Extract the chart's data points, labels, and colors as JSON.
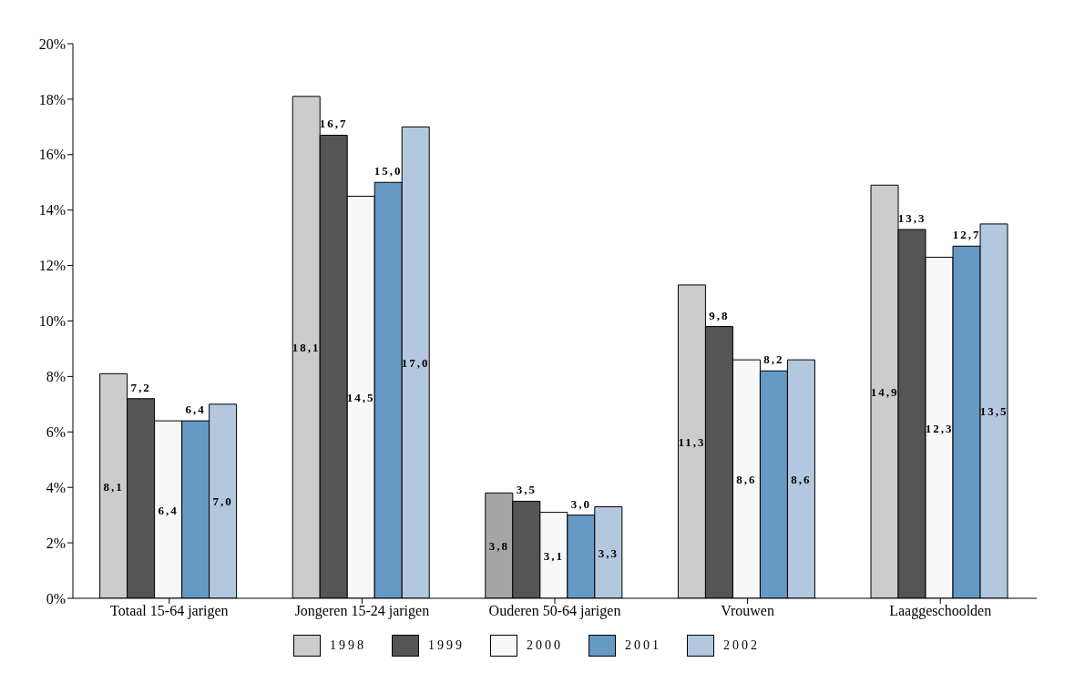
{
  "chart_data": {
    "type": "bar",
    "categories": [
      "Totaal  15-64 jarigen",
      "Jongeren 15-24 jarigen",
      "Ouderen 50-64 jarigen",
      "Vrouwen",
      "Laaggeschoolden"
    ],
    "series": [
      {
        "name": "1998",
        "color": "#cccccc",
        "colors": [
          "#cccccc",
          "#cccccc",
          "#a6a6a6",
          "#cccccc",
          "#cccccc"
        ],
        "values": [
          8.1,
          18.1,
          3.8,
          11.3,
          14.9
        ],
        "value_labels": [
          "8,1",
          "18,1",
          "3,8",
          "11,3",
          "14,9"
        ]
      },
      {
        "name": "1999",
        "color": "#555555",
        "values": [
          7.2,
          16.7,
          3.5,
          9.8,
          13.3
        ],
        "value_labels": [
          "7,2",
          "16,7",
          "3,5",
          "9,8",
          "13,3"
        ]
      },
      {
        "name": "2000",
        "color": "#f8f8f8",
        "values": [
          6.4,
          14.5,
          3.1,
          8.6,
          12.3
        ],
        "value_labels": [
          "6,4",
          "14,5",
          "3,1",
          "8,6",
          "12,3"
        ]
      },
      {
        "name": "2001",
        "color": "#6699c4",
        "values": [
          6.4,
          15.0,
          3.0,
          8.2,
          12.7
        ],
        "value_labels": [
          "6,4",
          "15,0",
          "3,0",
          "8,2",
          "12,7"
        ]
      },
      {
        "name": "2002",
        "color": "#b3c7df",
        "values": [
          7.0,
          17.0,
          3.3,
          8.6,
          13.5
        ],
        "value_labels": [
          "7,0",
          "17,0",
          "3,3",
          "8,6",
          "13,5"
        ]
      }
    ],
    "ylim": [
      0,
      20
    ],
    "yticks": [
      {
        "value": 0,
        "label": "0%"
      },
      {
        "value": 2,
        "label": "2%"
      },
      {
        "value": 4,
        "label": "4%"
      },
      {
        "value": 6,
        "label": "6%"
      },
      {
        "value": 8,
        "label": "8%"
      },
      {
        "value": 10,
        "label": "10%"
      },
      {
        "value": 12,
        "label": "12%"
      },
      {
        "value": 14,
        "label": "14%"
      },
      {
        "value": 16,
        "label": "16%"
      },
      {
        "value": 18,
        "label": "18%"
      },
      {
        "value": 20,
        "label": "20%"
      }
    ],
    "grid": false,
    "legend": "bottom"
  }
}
